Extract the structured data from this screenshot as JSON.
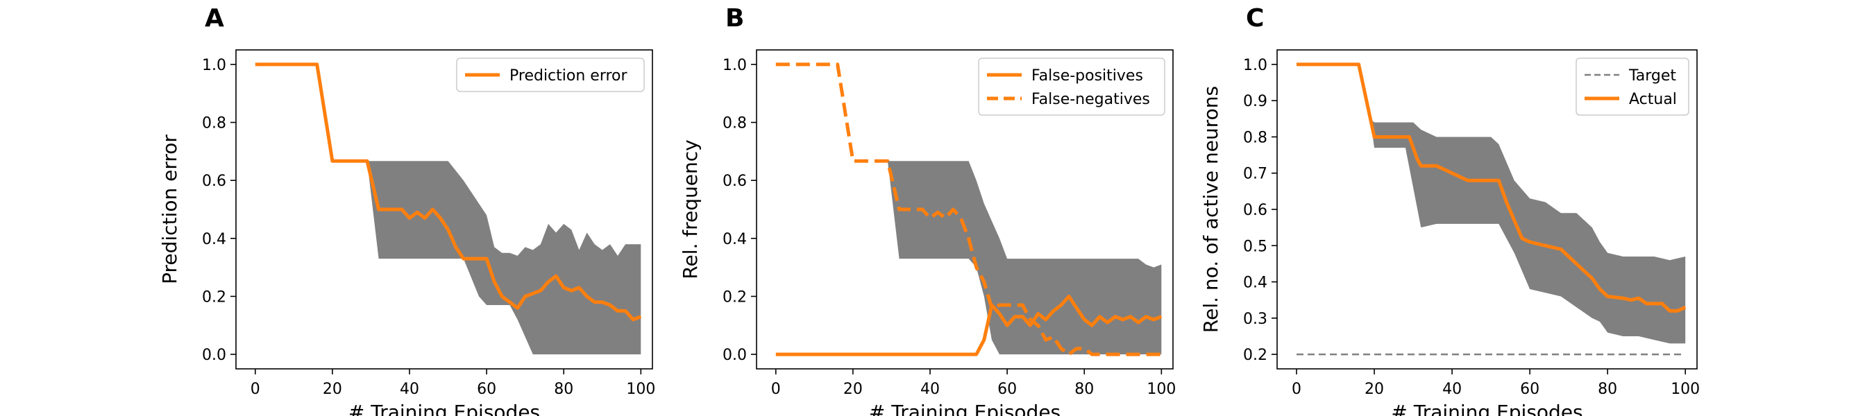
{
  "chart_data": [
    {
      "type": "line",
      "panel_label": "A",
      "xlabel": "# Training Episodes",
      "ylabel": "Prediction error",
      "xlim": [
        -5,
        103
      ],
      "ylim": [
        -0.05,
        1.05
      ],
      "xticks": [
        0,
        20,
        40,
        60,
        80,
        100
      ],
      "yticks": [
        0.0,
        0.2,
        0.4,
        0.6,
        0.8,
        1.0
      ],
      "ytick_labels": [
        "0.0",
        "0.2",
        "0.4",
        "0.6",
        "0.8",
        "1.0"
      ],
      "legend_position": "top-right",
      "grid": false,
      "series": [
        {
          "name": "Prediction error",
          "color": "#ff7f0e",
          "linestyle": "solid",
          "x": [
            0,
            16,
            20,
            29,
            32,
            38,
            40,
            42,
            44,
            46,
            48,
            50,
            52,
            54,
            56,
            58,
            60,
            62,
            64,
            66,
            68,
            70,
            72,
            74,
            76,
            78,
            80,
            82,
            84,
            86,
            88,
            90,
            92,
            94,
            96,
            98,
            100
          ],
          "y": [
            1.0,
            1.0,
            0.667,
            0.667,
            0.5,
            0.5,
            0.47,
            0.49,
            0.47,
            0.5,
            0.47,
            0.43,
            0.37,
            0.33,
            0.33,
            0.33,
            0.33,
            0.25,
            0.2,
            0.18,
            0.16,
            0.2,
            0.21,
            0.22,
            0.25,
            0.27,
            0.23,
            0.22,
            0.23,
            0.2,
            0.18,
            0.18,
            0.17,
            0.15,
            0.15,
            0.12,
            0.13
          ]
        }
      ],
      "bands": [
        {
          "color": "#808080",
          "x": [
            29,
            32,
            40,
            46,
            50,
            54,
            58,
            60,
            62,
            64,
            66,
            68,
            70,
            72,
            74,
            76,
            78,
            80,
            82,
            84,
            86,
            88,
            90,
            92,
            94,
            96,
            98,
            100
          ],
          "lower": [
            0.667,
            0.33,
            0.33,
            0.33,
            0.33,
            0.33,
            0.2,
            0.17,
            0.17,
            0.17,
            0.17,
            0.12,
            0.06,
            0.0,
            0.0,
            0.0,
            0.0,
            0.0,
            0.0,
            0.0,
            0.0,
            0.0,
            0.0,
            0.0,
            0.0,
            0.0,
            0.0,
            0.0
          ],
          "upper": [
            0.667,
            0.667,
            0.667,
            0.667,
            0.667,
            0.6,
            0.52,
            0.48,
            0.37,
            0.35,
            0.35,
            0.34,
            0.37,
            0.36,
            0.38,
            0.45,
            0.42,
            0.45,
            0.43,
            0.36,
            0.42,
            0.38,
            0.36,
            0.38,
            0.34,
            0.38,
            0.38,
            0.38
          ]
        }
      ]
    },
    {
      "type": "line",
      "panel_label": "B",
      "xlabel": "# Training Episodes",
      "ylabel": "Rel. frequency",
      "xlim": [
        -5,
        103
      ],
      "ylim": [
        -0.05,
        1.05
      ],
      "xticks": [
        0,
        20,
        40,
        60,
        80,
        100
      ],
      "yticks": [
        0.0,
        0.2,
        0.4,
        0.6,
        0.8,
        1.0
      ],
      "ytick_labels": [
        "0.0",
        "0.2",
        "0.4",
        "0.6",
        "0.8",
        "1.0"
      ],
      "legend_position": "top-right",
      "grid": false,
      "series": [
        {
          "name": "False-positives",
          "color": "#ff7f0e",
          "linestyle": "solid",
          "x": [
            0,
            52,
            54,
            56,
            58,
            60,
            62,
            64,
            66,
            68,
            70,
            72,
            74,
            76,
            78,
            80,
            82,
            84,
            86,
            88,
            90,
            92,
            94,
            96,
            98,
            100
          ],
          "y": [
            0.0,
            0.0,
            0.05,
            0.17,
            0.14,
            0.1,
            0.13,
            0.13,
            0.1,
            0.14,
            0.12,
            0.15,
            0.17,
            0.2,
            0.16,
            0.12,
            0.1,
            0.13,
            0.11,
            0.13,
            0.12,
            0.13,
            0.11,
            0.13,
            0.12,
            0.13
          ]
        },
        {
          "name": "False-negatives",
          "color": "#ff7f0e",
          "linestyle": "dashed",
          "x": [
            0,
            16,
            20,
            29,
            32,
            38,
            40,
            42,
            44,
            46,
            48,
            50,
            52,
            54,
            56,
            58,
            60,
            62,
            64,
            66,
            68,
            70,
            72,
            74,
            76,
            78,
            80,
            82,
            84,
            86,
            88,
            90,
            92,
            94,
            96,
            98,
            100
          ],
          "y": [
            1.0,
            1.0,
            0.667,
            0.667,
            0.5,
            0.5,
            0.47,
            0.49,
            0.47,
            0.5,
            0.47,
            0.4,
            0.3,
            0.25,
            0.16,
            0.17,
            0.17,
            0.17,
            0.17,
            0.12,
            0.1,
            0.05,
            0.06,
            0.02,
            0.0,
            0.02,
            0.02,
            0.0,
            0.0,
            0.0,
            0.0,
            0.0,
            0.0,
            0.0,
            0.0,
            0.0,
            0.0
          ]
        }
      ],
      "bands": [
        {
          "color": "#808080",
          "x": [
            29,
            32,
            40,
            46,
            50,
            52,
            54,
            56,
            58,
            60,
            62,
            64,
            66,
            68,
            70,
            72,
            74,
            76,
            78,
            80,
            82,
            84,
            86,
            88,
            90,
            92,
            94,
            96,
            98,
            100
          ],
          "lower": [
            0.667,
            0.33,
            0.33,
            0.33,
            0.33,
            0.3,
            0.2,
            0.05,
            0.0,
            0.0,
            0.0,
            0.0,
            0.0,
            0.0,
            0.0,
            0.0,
            0.0,
            0.0,
            0.0,
            0.0,
            0.0,
            0.0,
            0.0,
            0.0,
            0.0,
            0.0,
            0.0,
            0.0,
            0.0,
            0.0
          ],
          "upper": [
            0.667,
            0.667,
            0.667,
            0.667,
            0.667,
            0.6,
            0.52,
            0.46,
            0.4,
            0.33,
            0.33,
            0.33,
            0.33,
            0.33,
            0.33,
            0.33,
            0.33,
            0.33,
            0.33,
            0.33,
            0.33,
            0.33,
            0.33,
            0.33,
            0.33,
            0.33,
            0.33,
            0.31,
            0.3,
            0.31
          ]
        }
      ]
    },
    {
      "type": "line",
      "panel_label": "C",
      "xlabel": "# Training Episodes",
      "ylabel": "Rel. no. of active neurons",
      "xlim": [
        -5,
        103
      ],
      "ylim": [
        0.16,
        1.04
      ],
      "xticks": [
        0,
        20,
        40,
        60,
        80,
        100
      ],
      "yticks": [
        0.2,
        0.3,
        0.4,
        0.5,
        0.6,
        0.7,
        0.8,
        0.9,
        1.0
      ],
      "ytick_labels": [
        "0.2",
        "0.3",
        "0.4",
        "0.5",
        "0.6",
        "0.7",
        "0.8",
        "0.9",
        "1.0"
      ],
      "legend_position": "top-right",
      "grid": false,
      "series": [
        {
          "name": "Target",
          "color": "#808080",
          "linestyle": "dashed",
          "x": [
            0,
            99
          ],
          "y": [
            0.2,
            0.2
          ]
        },
        {
          "name": "Actual",
          "color": "#ff7f0e",
          "linestyle": "solid",
          "x": [
            0,
            16,
            19,
            20,
            29,
            31,
            32,
            34,
            36,
            40,
            44,
            48,
            52,
            54,
            56,
            58,
            60,
            64,
            68,
            70,
            72,
            74,
            76,
            78,
            80,
            84,
            86,
            88,
            90,
            92,
            94,
            96,
            98,
            100
          ],
          "y": [
            1.0,
            1.0,
            0.85,
            0.8,
            0.8,
            0.74,
            0.72,
            0.72,
            0.72,
            0.7,
            0.68,
            0.68,
            0.68,
            0.62,
            0.57,
            0.52,
            0.51,
            0.5,
            0.49,
            0.47,
            0.45,
            0.43,
            0.41,
            0.38,
            0.36,
            0.355,
            0.35,
            0.355,
            0.34,
            0.34,
            0.34,
            0.32,
            0.32,
            0.33
          ]
        }
      ],
      "bands": [
        {
          "color": "#808080",
          "x": [
            19,
            20,
            28,
            30,
            32,
            36,
            40,
            44,
            48,
            50,
            52,
            56,
            60,
            64,
            68,
            72,
            76,
            78,
            80,
            84,
            88,
            92,
            96,
            100
          ],
          "lower": [
            0.85,
            0.77,
            0.77,
            0.66,
            0.55,
            0.56,
            0.56,
            0.56,
            0.56,
            0.56,
            0.56,
            0.48,
            0.38,
            0.37,
            0.36,
            0.33,
            0.3,
            0.29,
            0.26,
            0.25,
            0.25,
            0.24,
            0.23,
            0.23
          ],
          "upper": [
            0.85,
            0.84,
            0.84,
            0.84,
            0.82,
            0.8,
            0.8,
            0.8,
            0.8,
            0.8,
            0.78,
            0.68,
            0.63,
            0.62,
            0.59,
            0.59,
            0.55,
            0.51,
            0.48,
            0.47,
            0.47,
            0.47,
            0.46,
            0.47
          ]
        }
      ]
    }
  ]
}
